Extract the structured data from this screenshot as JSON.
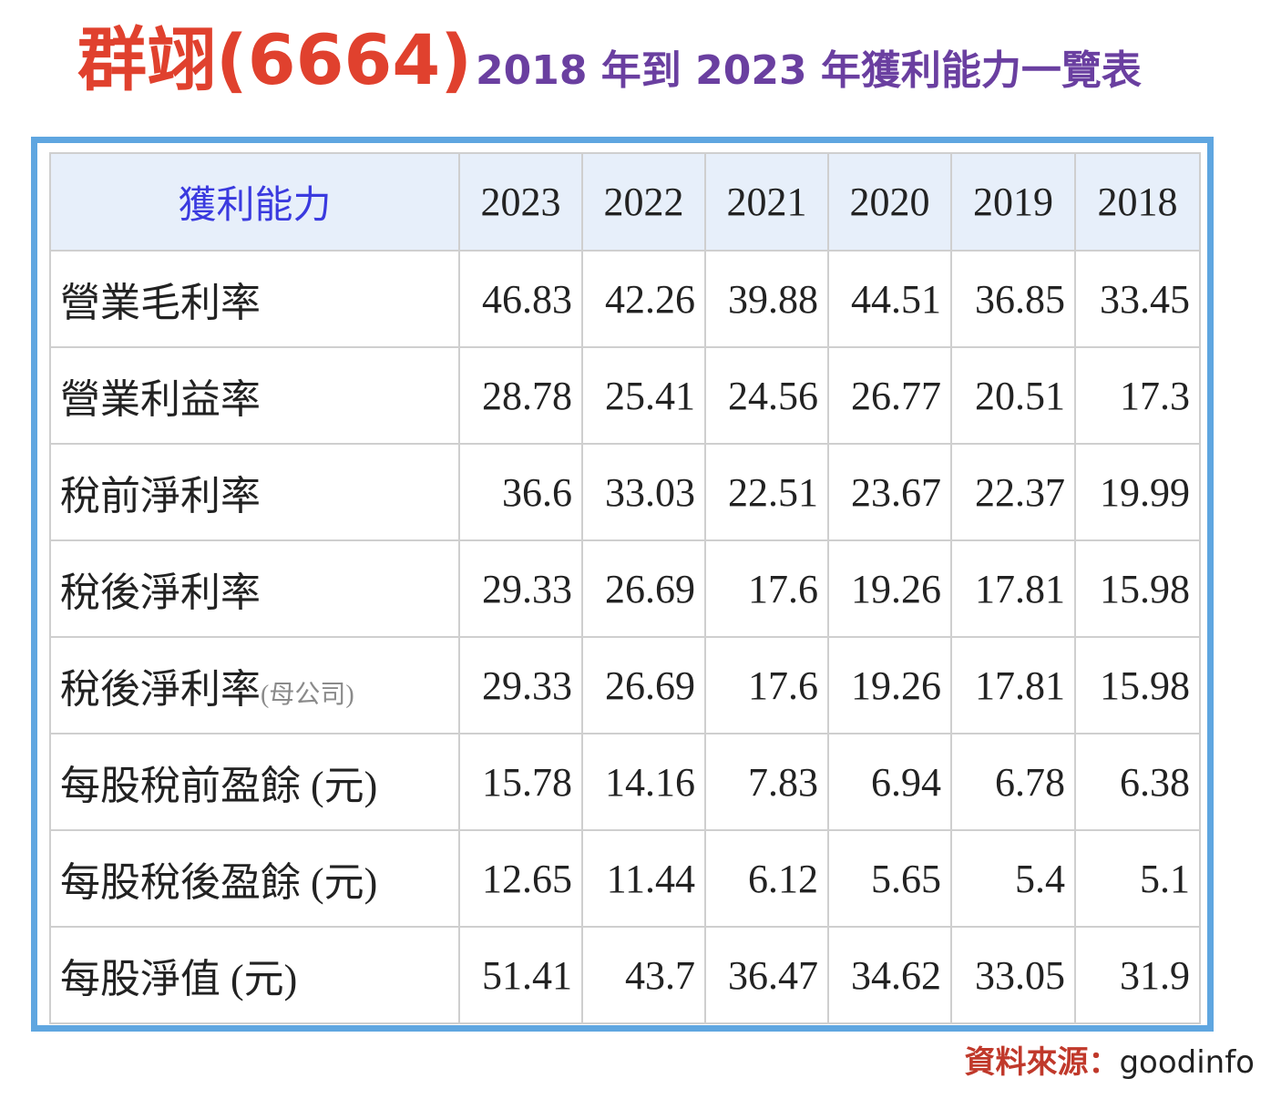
{
  "title": {
    "main": "群翊(6664)",
    "sub": "2018 年到 2023 年獲利能力一覽表"
  },
  "table": {
    "header_label": "獲利能力",
    "years": [
      "2023",
      "2022",
      "2021",
      "2020",
      "2019",
      "2018"
    ],
    "rows": [
      {
        "label": "營業毛利率",
        "note": "",
        "values": [
          "46.83",
          "42.26",
          "39.88",
          "44.51",
          "36.85",
          "33.45"
        ]
      },
      {
        "label": "營業利益率",
        "note": "",
        "values": [
          "28.78",
          "25.41",
          "24.56",
          "26.77",
          "20.51",
          "17.3"
        ]
      },
      {
        "label": "稅前淨利率",
        "note": "",
        "values": [
          "36.6",
          "33.03",
          "22.51",
          "23.67",
          "22.37",
          "19.99"
        ]
      },
      {
        "label": "稅後淨利率",
        "note": "",
        "values": [
          "29.33",
          "26.69",
          "17.6",
          "19.26",
          "17.81",
          "15.98"
        ]
      },
      {
        "label": "稅後淨利率",
        "note": "(母公司)",
        "values": [
          "29.33",
          "26.69",
          "17.6",
          "19.26",
          "17.81",
          "15.98"
        ]
      },
      {
        "label": "每股稅前盈餘 (元)",
        "note": "",
        "values": [
          "15.78",
          "14.16",
          "7.83",
          "6.94",
          "6.78",
          "6.38"
        ]
      },
      {
        "label": "每股稅後盈餘 (元)",
        "note": "",
        "values": [
          "12.65",
          "11.44",
          "6.12",
          "5.65",
          "5.4",
          "5.1"
        ]
      },
      {
        "label": "每股淨值 (元)",
        "note": "",
        "values": [
          "51.41",
          "43.7",
          "36.47",
          "34.62",
          "33.05",
          "31.9"
        ]
      }
    ]
  },
  "source": {
    "label": "資料來源：",
    "name": "goodinfo"
  }
}
